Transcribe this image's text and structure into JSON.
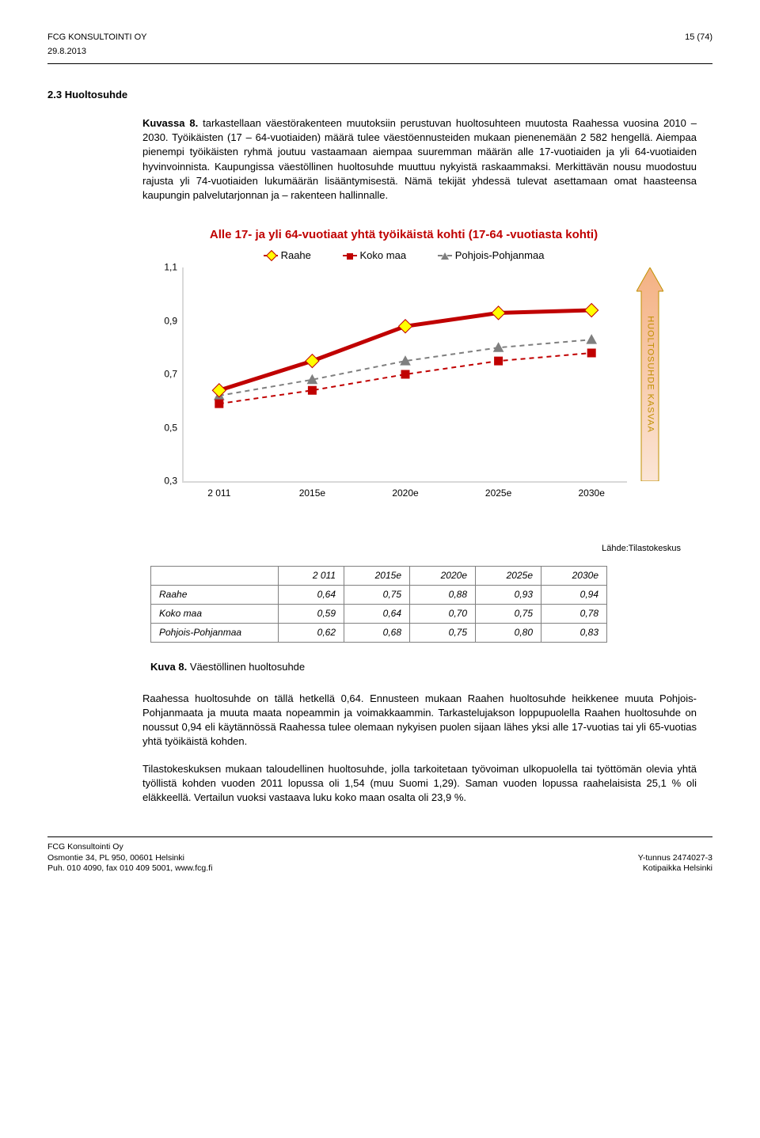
{
  "header": {
    "company": "FCG KONSULTOINTI OY",
    "page": "15 (74)",
    "date": "29.8.2013"
  },
  "section": {
    "number": "2.3",
    "title": "Huoltosuhde"
  },
  "paragraphs": {
    "para1_label": "Kuvassa 8.",
    "para1": " tarkastellaan väestörakenteen muutoksiin perustuvan huoltosuhteen muutosta Raahessa vuosina 2010 – 2030. Työikäisten (17 – 64-vuotiaiden) määrä tulee väestöennusteiden mukaan pienenemään 2 582 hengellä. Aiempaa pienempi työikäisten ryhmä joutuu vastaamaan aiempaa suuremman määrän alle 17-vuotiaiden ja yli 64-vuotiaiden hyvinvoinnista. Kaupungissa väestöllinen huoltosuhde muuttuu nykyistä raskaammaksi. Merkittävän nousu muodostuu rajusta yli 74-vuotiaiden lukumäärän lisääntymisestä. Nämä tekijät yhdessä tulevat asettamaan omat haasteensa kaupungin palvelutarjonnan ja – rakenteen hallinnalle.",
    "para2": "Raahessa huoltosuhde on tällä hetkellä 0,64. Ennusteen mukaan Raahen huoltosuhde heikkenee muuta Pohjois-Pohjanmaata ja muuta maata nopeammin ja voimakkaammin. Tarkastelujakson loppupuolella Raahen huoltosuhde on noussut 0,94 eli käytännössä Raahessa tulee olemaan nykyisen puolen sijaan lähes yksi alle 17-vuotias tai yli 65-vuotias yhtä työikäistä kohden.",
    "para3": "Tilastokeskuksen mukaan taloudellinen huoltosuhde, jolla tarkoitetaan työvoiman ulkopuolella tai työttömän olevia yhtä työllistä kohden vuoden 2011 lopussa oli 1,54 (muu Suomi 1,29). Saman vuoden lopussa raahelaisista 25,1 % oli eläkkeellä. Vertailun vuoksi vastaava luku koko maan osalta oli 23,9 %."
  },
  "chart": {
    "title": "Alle 17- ja yli 64-vuotiaat yhtä työikäistä kohti (17-64 -vuotiasta kohti)",
    "legend": {
      "raahe": "Raahe",
      "koko": "Koko maa",
      "pp": "Pohjois-Pohjanmaa"
    },
    "yticks": [
      "1,1",
      "0,9",
      "0,7",
      "0,5",
      "0,3"
    ],
    "xticks": [
      "2 011",
      "2015e",
      "2020e",
      "2025e",
      "2030e"
    ],
    "ylim": [
      0.3,
      1.1
    ],
    "series": {
      "raahe": {
        "color": "#c00000",
        "marker_fill": "#ffff00",
        "values": [
          0.64,
          0.75,
          0.88,
          0.93,
          0.94
        ],
        "style": "solid"
      },
      "koko": {
        "color": "#c00000",
        "values": [
          0.59,
          0.64,
          0.7,
          0.75,
          0.78
        ],
        "style": "dash",
        "marker": "square"
      },
      "pp": {
        "color": "#7f7f7f",
        "values": [
          0.62,
          0.68,
          0.75,
          0.8,
          0.83
        ],
        "style": "dash",
        "marker": "triangle"
      }
    },
    "arrow_text": "HUOLTOSUHDE KASVAA",
    "arrow_gradient_top": "#f4b183",
    "arrow_gradient_bottom": "#fbe5d6",
    "arrow_border": "#bf9000"
  },
  "source": "Lähde:Tilastokeskus",
  "table": {
    "headers": [
      "2 011",
      "2015e",
      "2020e",
      "2025e",
      "2030e"
    ],
    "rows": [
      {
        "name": "Raahe",
        "cells": [
          "0,64",
          "0,75",
          "0,88",
          "0,93",
          "0,94"
        ]
      },
      {
        "name": "Koko maa",
        "cells": [
          "0,59",
          "0,64",
          "0,70",
          "0,75",
          "0,78"
        ]
      },
      {
        "name": "Pohjois-Pohjanmaa",
        "cells": [
          "0,62",
          "0,68",
          "0,75",
          "0,80",
          "0,83"
        ]
      }
    ]
  },
  "caption": {
    "num": "Kuva 8.",
    "text": " Väestöllinen huoltosuhde"
  },
  "footer": {
    "left1": "FCG Konsultointi Oy",
    "left2": "Osmontie 34, PL 950, 00601 Helsinki",
    "left3": "Puh. 010 4090, fax 010 409 5001, www.fcg.fi",
    "right1": "Y-tunnus 2474027-3",
    "right2": "Kotipaikka Helsinki"
  }
}
